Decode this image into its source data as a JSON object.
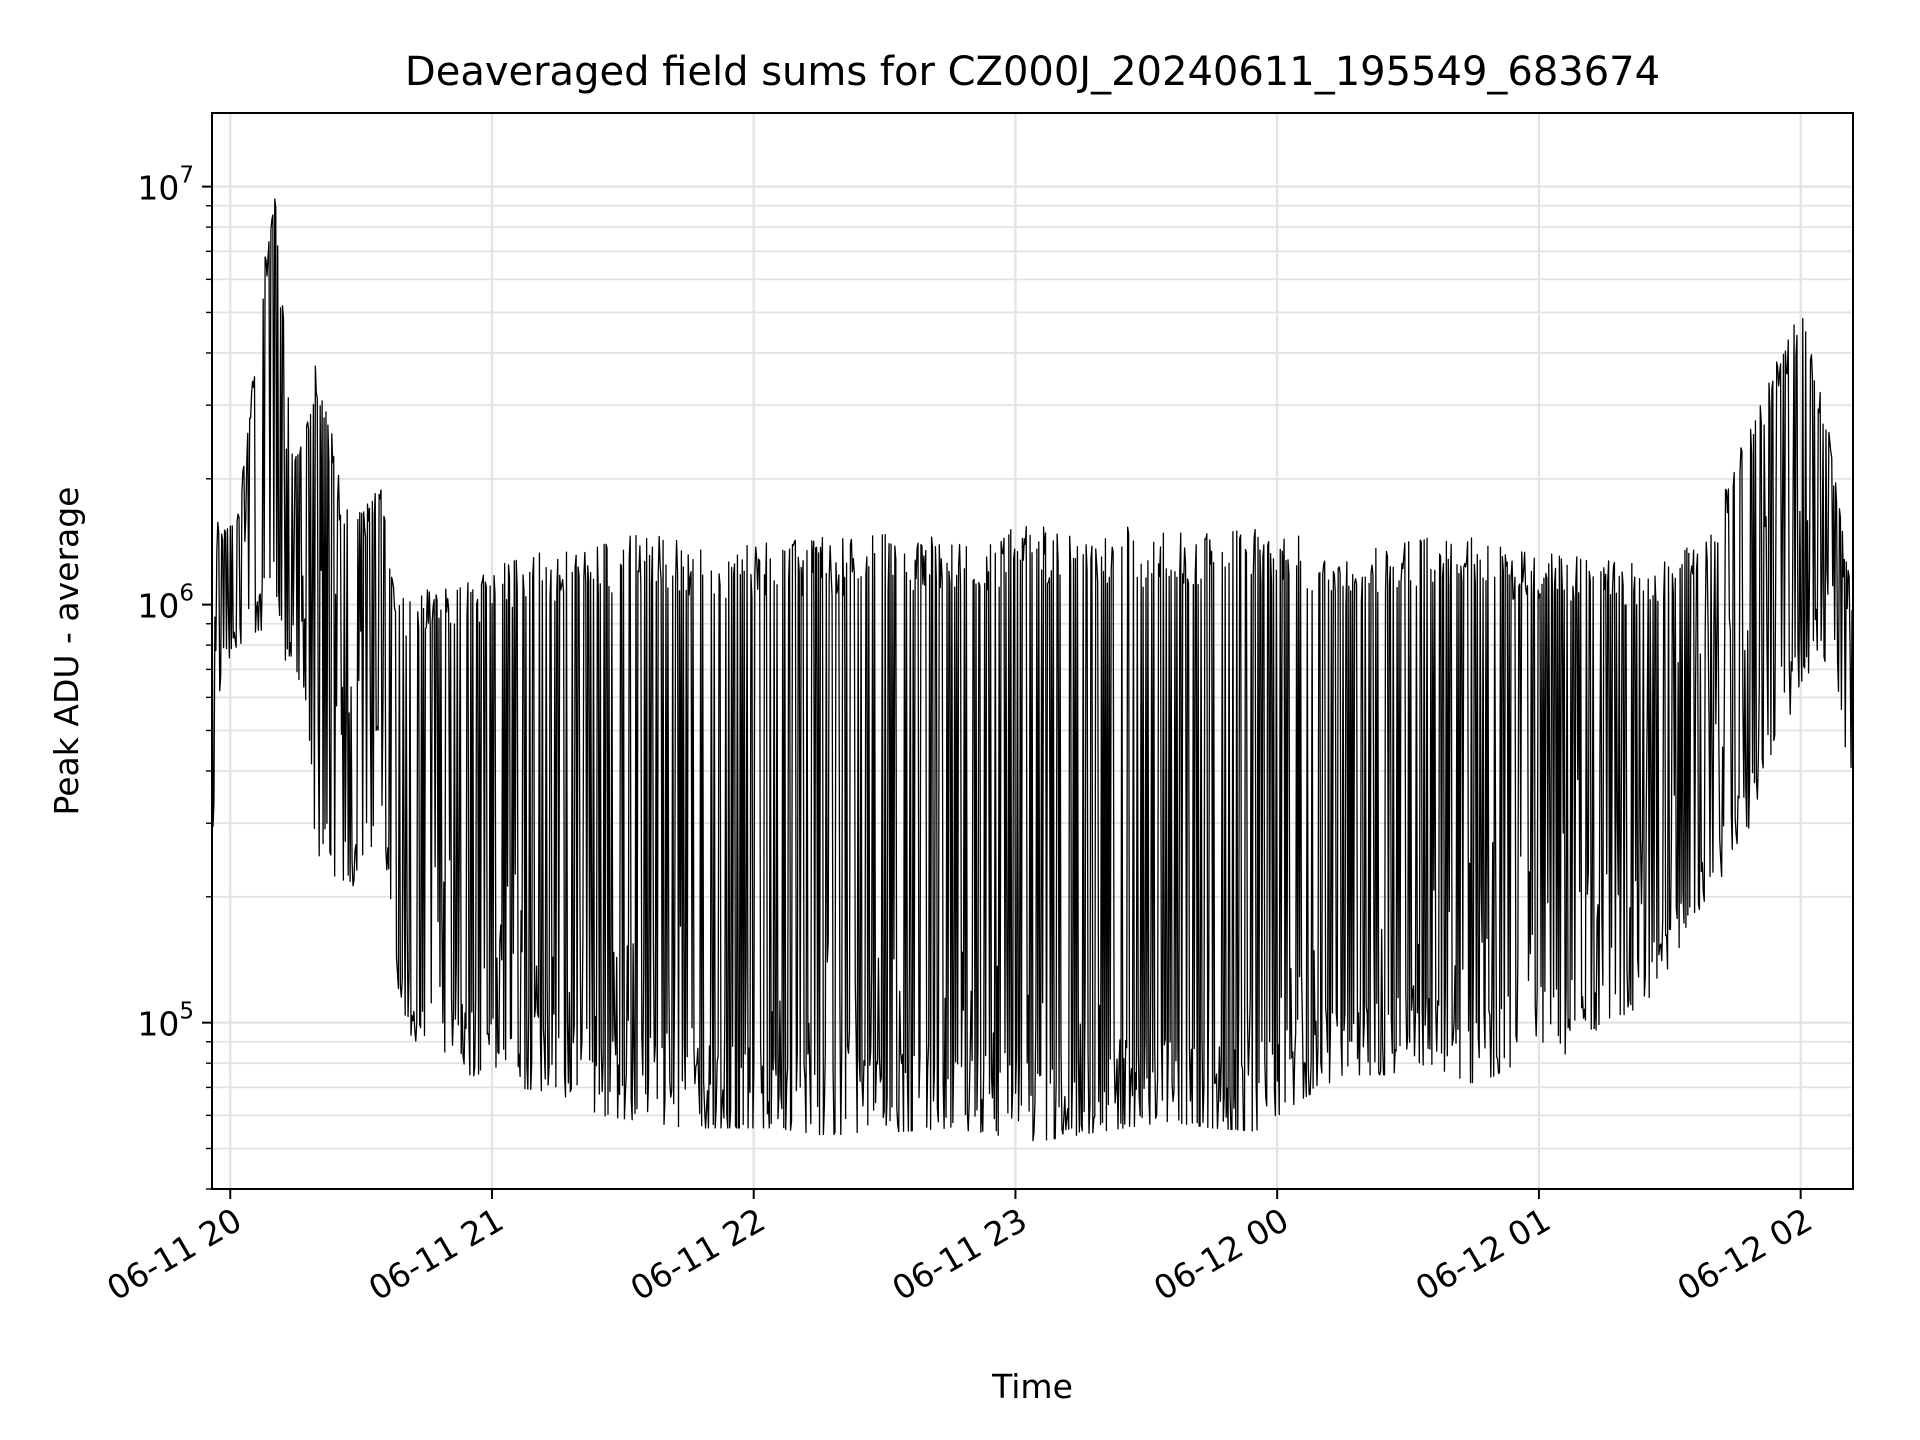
{
  "chart_data": {
    "type": "line",
    "title": "Deaveraged field sums for CZ000J_20240611_195549_683674",
    "xlabel": "Time",
    "ylabel": "Peak ADU - average",
    "yscale": "log",
    "xlim": [
      "2024-06-11 19:55:49",
      "2024-06-12 02:12:00"
    ],
    "ylim": [
      40000,
      15000000
    ],
    "grid": true,
    "legend": "none",
    "line_color": "#000000",
    "x_ticks": [
      {
        "t": "2024-06-11 20:00",
        "label": "06-11 20"
      },
      {
        "t": "2024-06-11 21:00",
        "label": "06-11 21"
      },
      {
        "t": "2024-06-11 22:00",
        "label": "06-11 22"
      },
      {
        "t": "2024-06-11 23:00",
        "label": "06-11 23"
      },
      {
        "t": "2024-06-12 00:00",
        "label": "06-12 00"
      },
      {
        "t": "2024-06-12 01:00",
        "label": "06-12 01"
      },
      {
        "t": "2024-06-12 02:00",
        "label": "06-12 02"
      }
    ],
    "y_ticks": [
      {
        "value": 100000,
        "base": "10",
        "exp": "5"
      },
      {
        "value": 1000000,
        "base": "10",
        "exp": "6"
      },
      {
        "value": 10000000,
        "base": "10",
        "exp": "7"
      }
    ],
    "series": [
      {
        "x": [
          "2024-06-11 19:55:49",
          "2024-06-11 19:58",
          "2024-06-11 20:02",
          "2024-06-11 20:10",
          "2024-06-11 20:14",
          "2024-06-11 20:17",
          "2024-06-11 20:20",
          "2024-06-11 20:25",
          "2024-06-11 20:30",
          "2024-06-11 20:35",
          "2024-06-11 20:38",
          "2024-06-11 20:42",
          "2024-06-11 20:47",
          "2024-06-11 20:55",
          "2024-06-11 21:05",
          "2024-06-11 21:15",
          "2024-06-11 21:25",
          "2024-06-11 21:35",
          "2024-06-11 21:45",
          "2024-06-11 21:55",
          "2024-06-11 22:05",
          "2024-06-11 22:15",
          "2024-06-11 22:25",
          "2024-06-11 22:35",
          "2024-06-11 22:45",
          "2024-06-11 22:55",
          "2024-06-11 23:05",
          "2024-06-11 23:15",
          "2024-06-11 23:25",
          "2024-06-11 23:35",
          "2024-06-11 23:45",
          "2024-06-11 23:55",
          "2024-06-12 00:05",
          "2024-06-12 00:15",
          "2024-06-12 00:25",
          "2024-06-12 00:35",
          "2024-06-12 00:45",
          "2024-06-12 00:55",
          "2024-06-12 01:05",
          "2024-06-12 01:15",
          "2024-06-12 01:25",
          "2024-06-12 01:32",
          "2024-06-12 01:40",
          "2024-06-12 01:50",
          "2024-06-12 02:00",
          "2024-06-12 02:06",
          "2024-06-12 02:12"
        ],
        "y": [
          1200000,
          1000000,
          1050000,
          10800000,
          1100000,
          900000,
          700000,
          650000,
          600000,
          450000,
          110000,
          180000,
          160000,
          120000,
          110000,
          100000,
          90000,
          80000,
          75000,
          70000,
          72000,
          70000,
          68000,
          66000,
          65000,
          64000,
          65000,
          66000,
          64000,
          65000,
          63000,
          62000,
          70000,
          80000,
          95000,
          110000,
          120000,
          150000,
          180000,
          250000,
          350000,
          450000,
          600000,
          900000,
          1200000,
          1000000,
          900000
        ],
        "envelope_upper": [
          1900000,
          1500000,
          1700000,
          10800000,
          2500000,
          2600000,
          4200000,
          2000000,
          1700000,
          2100000,
          1000000,
          1100000,
          1100000,
          1150000,
          1300000,
          1350000,
          1450000,
          1500000,
          1450000,
          1400000,
          1450000,
          1450000,
          1450000,
          1500000,
          1500000,
          1500000,
          1550000,
          1550000,
          1550000,
          1500000,
          1550000,
          1550000,
          1500000,
          1300000,
          1400000,
          1450000,
          1500000,
          1350000,
          1350000,
          1300000,
          1250000,
          1300000,
          1600000,
          3100000,
          5100000,
          2800000,
          1000000
        ],
        "envelope_lower": [
          250000,
          700000,
          800000,
          900000,
          650000,
          600000,
          200000,
          200000,
          210000,
          280000,
          105000,
          90000,
          85000,
          75000,
          70000,
          68000,
          60000,
          58000,
          56000,
          56000,
          56000,
          54000,
          54000,
          55000,
          56000,
          54000,
          52000,
          54000,
          56000,
          58000,
          56000,
          55000,
          65000,
          75000,
          75000,
          80000,
          70000,
          80000,
          80000,
          100000,
          110000,
          150000,
          200000,
          300000,
          650000,
          700000,
          380000
        ]
      }
    ]
  }
}
